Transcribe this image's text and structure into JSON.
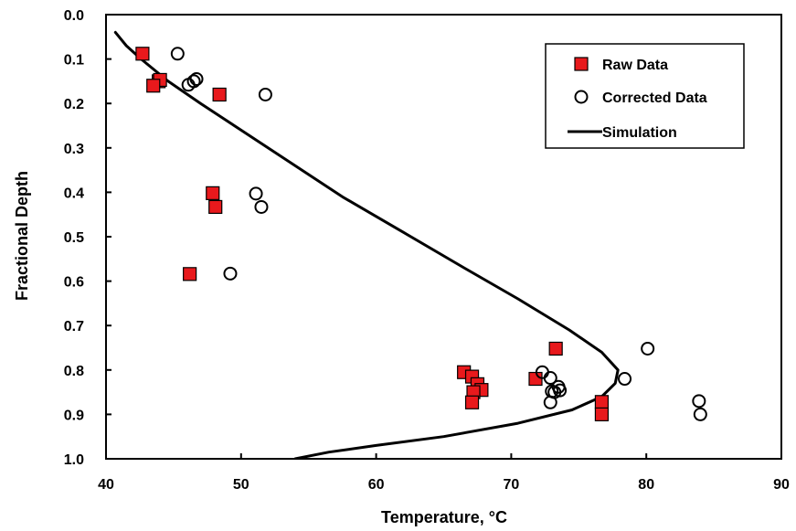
{
  "chart_data": {
    "type": "scatter",
    "xlabel": "Temperature, °C",
    "ylabel": "Fractional Depth",
    "xlim": [
      40,
      90
    ],
    "ylim": [
      0.0,
      1.0
    ],
    "y_inverted": true,
    "x_ticks": [
      "40",
      "50",
      "60",
      "70",
      "80",
      "90"
    ],
    "y_ticks": [
      "0.0",
      "0.1",
      "0.2",
      "0.3",
      "0.4",
      "0.5",
      "0.6",
      "0.7",
      "0.8",
      "0.9",
      "1.0"
    ],
    "grid": false,
    "legend_position": "top-right",
    "series": [
      {
        "name": "Raw Data",
        "marker": "square",
        "color": "#e8191c",
        "points": [
          [
            42.7,
            0.088
          ],
          [
            43.9,
            0.15
          ],
          [
            44.0,
            0.147
          ],
          [
            43.5,
            0.16
          ],
          [
            48.4,
            0.18
          ],
          [
            47.9,
            0.402
          ],
          [
            48.1,
            0.433
          ],
          [
            46.2,
            0.584
          ],
          [
            73.3,
            0.752
          ],
          [
            66.5,
            0.805
          ],
          [
            67.1,
            0.815
          ],
          [
            67.5,
            0.832
          ],
          [
            67.8,
            0.845
          ],
          [
            67.2,
            0.85
          ],
          [
            67.1,
            0.873
          ],
          [
            71.8,
            0.82
          ],
          [
            76.7,
            0.872
          ],
          [
            76.7,
            0.9
          ]
        ]
      },
      {
        "name": "Corrected Data",
        "marker": "circle",
        "color": "#000000",
        "points": [
          [
            45.3,
            0.088
          ],
          [
            46.7,
            0.145
          ],
          [
            46.5,
            0.15
          ],
          [
            46.1,
            0.158
          ],
          [
            51.8,
            0.18
          ],
          [
            51.1,
            0.403
          ],
          [
            51.5,
            0.433
          ],
          [
            49.2,
            0.583
          ],
          [
            80.1,
            0.752
          ],
          [
            72.3,
            0.805
          ],
          [
            72.9,
            0.818
          ],
          [
            73.5,
            0.838
          ],
          [
            73.6,
            0.846
          ],
          [
            73.0,
            0.848
          ],
          [
            73.2,
            0.85
          ],
          [
            72.9,
            0.873
          ],
          [
            78.4,
            0.82
          ],
          [
            83.9,
            0.87
          ],
          [
            84.0,
            0.9
          ]
        ]
      },
      {
        "name": "Simulation",
        "marker": "line",
        "color": "#000000",
        "points": [
          [
            40.7,
            0.04
          ],
          [
            41.5,
            0.07
          ],
          [
            42.6,
            0.1
          ],
          [
            44.6,
            0.15
          ],
          [
            47.0,
            0.2
          ],
          [
            50.0,
            0.26
          ],
          [
            53.5,
            0.33
          ],
          [
            57.5,
            0.41
          ],
          [
            62.0,
            0.49
          ],
          [
            66.5,
            0.57
          ],
          [
            70.5,
            0.64
          ],
          [
            74.3,
            0.71
          ],
          [
            76.7,
            0.76
          ],
          [
            77.9,
            0.8
          ],
          [
            77.7,
            0.83
          ],
          [
            76.7,
            0.86
          ],
          [
            74.5,
            0.89
          ],
          [
            70.5,
            0.92
          ],
          [
            65.0,
            0.95
          ],
          [
            60.0,
            0.97
          ],
          [
            56.5,
            0.985
          ],
          [
            54.0,
            1.0
          ]
        ]
      }
    ]
  }
}
